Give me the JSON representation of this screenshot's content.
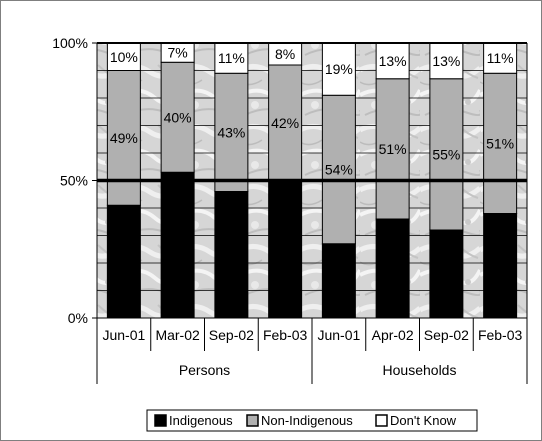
{
  "chart_data": {
    "type": "bar",
    "stacked": "percent",
    "groups": [
      {
        "name": "Persons",
        "categories": [
          "Jun-01",
          "Mar-02",
          "Sep-02",
          "Feb-03"
        ]
      },
      {
        "name": "Households",
        "categories": [
          "Jun-01",
          "Apr-02",
          "Sep-02",
          "Feb-03"
        ]
      }
    ],
    "categories": [
      "Jun-01",
      "Mar-02",
      "Sep-02",
      "Feb-03",
      "Jun-01",
      "Apr-02",
      "Sep-02",
      "Feb-03"
    ],
    "series": [
      {
        "name": "Indigenous",
        "values": [
          41,
          53,
          46,
          50,
          27,
          36,
          32,
          38
        ],
        "labels": [
          "",
          "",
          "",
          "",
          "",
          "",
          "",
          ""
        ],
        "color": "#000000"
      },
      {
        "name": "Non-Indigenous",
        "values": [
          49,
          40,
          43,
          42,
          54,
          51,
          55,
          51
        ],
        "labels": [
          "49%",
          "40%",
          "43%",
          "42%",
          "54%",
          "51%",
          "55%",
          "51%"
        ],
        "color": "#b0b0b0"
      },
      {
        "name": "Don't Know",
        "values": [
          10,
          7,
          11,
          8,
          19,
          13,
          13,
          11
        ],
        "labels": [
          "10%",
          "7%",
          "11%",
          "8%",
          "19%",
          "13%",
          "13%",
          "11%"
        ],
        "color": "#ffffff"
      }
    ],
    "yticks": [
      "0%",
      "50%",
      "100%"
    ],
    "ylim": [
      0,
      100
    ],
    "reference_line": 50,
    "legend": {
      "position": "bottom",
      "entries": [
        "Indigenous",
        "Non-Indigenous",
        "Don't Know"
      ]
    }
  }
}
